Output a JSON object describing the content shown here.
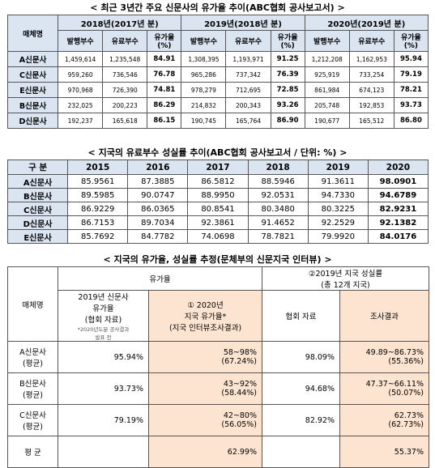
{
  "table1": {
    "title": "< 최근 3년간 주요 신문사의 유가율 추이(ABC협회 공사보고서) >",
    "header": {
      "name": "매체명",
      "years": [
        "2018년(2017년 분)",
        "2019년(2018년 분)",
        "2020년(2019년 분)"
      ],
      "sub": [
        "발행부수",
        "유료부수",
        "유가율\n(%)"
      ]
    },
    "rows": [
      {
        "name": "A신문사",
        "cells": [
          "1,459,614",
          "1,235,548",
          "84.91",
          "1,308,395",
          "1,193,971",
          "91.25",
          "1,212,208",
          "1,162,953",
          "95.94"
        ]
      },
      {
        "name": "C신문사",
        "cells": [
          "959,260",
          "736,546",
          "76.78",
          "965,286",
          "737,342",
          "76.39",
          "925,919",
          "733,254",
          "79.19"
        ]
      },
      {
        "name": "E신문사",
        "cells": [
          "970,968",
          "726,390",
          "74.81",
          "978,279",
          "712,695",
          "72.85",
          "861,984",
          "674,123",
          "78.21"
        ]
      },
      {
        "name": "B신문사",
        "cells": [
          "232,025",
          "200,223",
          "86.29",
          "214,832",
          "200,343",
          "93.26",
          "205,748",
          "192,853",
          "93.73"
        ]
      },
      {
        "name": "D신문사",
        "cells": [
          "192,237",
          "165,618",
          "86.15",
          "190,745",
          "165,764",
          "86.90",
          "190,677",
          "165,512",
          "86.80"
        ]
      }
    ]
  },
  "table2": {
    "title": "< 지국의 유료부수 성실률 추이(ABC협회 공사보고서 / 단위: %) >",
    "header": [
      "구 분",
      "2015",
      "2016",
      "2017",
      "2018",
      "2019",
      "2020"
    ],
    "rows": [
      [
        "A신문사",
        "85.9561",
        "87.3885",
        "86.5812",
        "88.5946",
        "91.3611",
        "98.0901"
      ],
      [
        "B신문사",
        "89.5985",
        "90.0747",
        "88.9950",
        "92.0531",
        "94.7330",
        "94.6789"
      ],
      [
        "C신문사",
        "86.9229",
        "86.0365",
        "80.8541",
        "80.3480",
        "80.3225",
        "82.9231"
      ],
      [
        "D신문사",
        "86.7153",
        "89.7034",
        "92.3861",
        "91.4652",
        "92.2529",
        "92.1382"
      ],
      [
        "E신문사",
        "85.7692",
        "84.7782",
        "74.0698",
        "78.7821",
        "79.9920",
        "84.0176"
      ]
    ]
  },
  "table3": {
    "title": "< 지국의 유가율, 성실률 추정(문체부의 신문지국 인터뷰) >",
    "header": {
      "name": "매체명",
      "group1": "유가율",
      "group2": "②2019년 지국 성실률\n(총 12개 지국)",
      "sub1": "2019년 신문사\n유가율\n(협회 자료)",
      "note": "*2020년도분 공사결과\n발표 전",
      "sub2": "① 2020년\n지국 유가율*\n(지국 인터뷰조사결과)",
      "sub3": "협회 자료",
      "sub4": "조사결과"
    },
    "rows": [
      [
        "A신문사\n(평균)",
        "95.94%",
        "58~98%\n(67.24%)",
        "98.09%",
        "49.89~86.73%\n(55.36%)"
      ],
      [
        "B신문사\n(평균)",
        "93.73%",
        "43~92%\n(58.44%)",
        "94.68%",
        "47.37~66.11%\n(50.07%)"
      ],
      [
        "C신문사\n(평균)",
        "79.19%",
        "42~80%\n(56.05%)",
        "82.92%",
        "62.73%\n(62.73%)"
      ]
    ],
    "average": {
      "name": "평 균",
      "rate": "62.99%",
      "result": "55.37%"
    }
  }
}
